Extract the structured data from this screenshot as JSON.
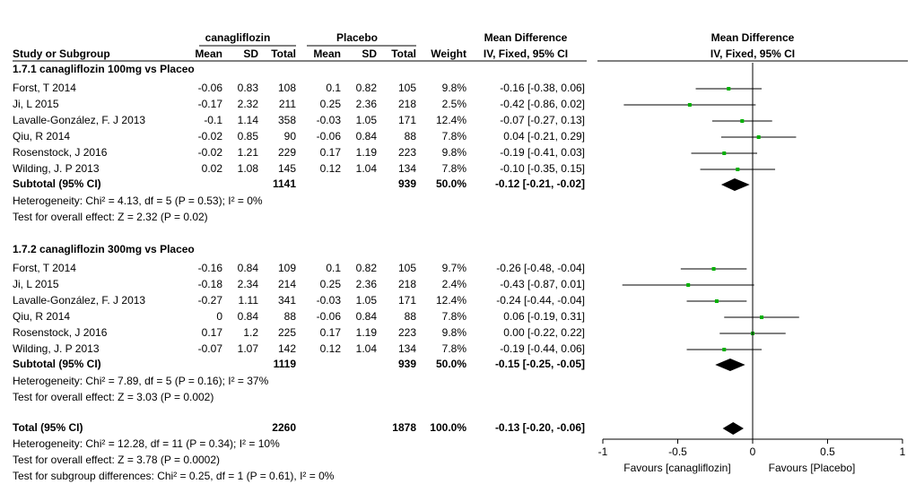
{
  "chart_data": {
    "type": "forest",
    "header": {
      "group1": "canagliflozin",
      "group2": "Placebo",
      "md_title": "Mean Difference",
      "md_method": "IV, Fixed, 95% CI",
      "plot_title": "Mean Difference",
      "plot_method": "IV, Fixed, 95% CI",
      "study": "Study or Subgroup",
      "mean1": "Mean",
      "sd1": "SD",
      "total1": "Total",
      "mean2": "Mean",
      "sd2": "SD",
      "total2": "Total",
      "weight": "Weight"
    },
    "subgroups": [
      {
        "title": "1.7.1 canagliflozin 100mg vs Placeo",
        "studies": [
          {
            "study": "Forst, T 2014",
            "mean1": "-0.06",
            "sd1": "0.83",
            "total1": "108",
            "mean2": "0.1",
            "sd2": "0.82",
            "total2": "105",
            "weight": "9.8%",
            "ci_label": "-0.16 [-0.38, 0.06]",
            "md": -0.16,
            "ci_low": -0.38,
            "ci_high": 0.06
          },
          {
            "study": "Ji, L 2015",
            "mean1": "-0.17",
            "sd1": "2.32",
            "total1": "211",
            "mean2": "0.25",
            "sd2": "2.36",
            "total2": "218",
            "weight": "2.5%",
            "ci_label": "-0.42 [-0.86, 0.02]",
            "md": -0.42,
            "ci_low": -0.86,
            "ci_high": 0.02
          },
          {
            "study": "Lavalle-González, F. J 2013",
            "mean1": "-0.1",
            "sd1": "1.14",
            "total1": "358",
            "mean2": "-0.03",
            "sd2": "1.05",
            "total2": "171",
            "weight": "12.4%",
            "ci_label": "-0.07 [-0.27, 0.13]",
            "md": -0.07,
            "ci_low": -0.27,
            "ci_high": 0.13
          },
          {
            "study": "Qiu, R 2014",
            "mean1": "-0.02",
            "sd1": "0.85",
            "total1": "90",
            "mean2": "-0.06",
            "sd2": "0.84",
            "total2": "88",
            "weight": "7.8%",
            "ci_label": "0.04 [-0.21, 0.29]",
            "md": 0.04,
            "ci_low": -0.21,
            "ci_high": 0.29
          },
          {
            "study": "Rosenstock, J 2016",
            "mean1": "-0.02",
            "sd1": "1.21",
            "total1": "229",
            "mean2": "0.17",
            "sd2": "1.19",
            "total2": "223",
            "weight": "9.8%",
            "ci_label": "-0.19 [-0.41, 0.03]",
            "md": -0.19,
            "ci_low": -0.41,
            "ci_high": 0.03
          },
          {
            "study": "Wilding, J. P 2013",
            "mean1": "0.02",
            "sd1": "1.08",
            "total1": "145",
            "mean2": "0.12",
            "sd2": "1.04",
            "total2": "134",
            "weight": "7.8%",
            "ci_label": "-0.10 [-0.35, 0.15]",
            "md": -0.1,
            "ci_low": -0.35,
            "ci_high": 0.15
          }
        ],
        "subtotal": {
          "study": "Subtotal (95% CI)",
          "total1": "1141",
          "total2": "939",
          "weight": "50.0%",
          "ci_label": "-0.12 [-0.21, -0.02]",
          "md": -0.12,
          "ci_low": -0.21,
          "ci_high": -0.02
        },
        "heterogeneity": "Heterogeneity: Chi² = 4.13, df = 5 (P = 0.53); I² = 0%",
        "overall_effect": "Test for overall effect: Z = 2.32 (P = 0.02)"
      },
      {
        "title": "1.7.2 canagliflozin 300mg vs Placeo",
        "studies": [
          {
            "study": "Forst, T 2014",
            "mean1": "-0.16",
            "sd1": "0.84",
            "total1": "109",
            "mean2": "0.1",
            "sd2": "0.82",
            "total2": "105",
            "weight": "9.7%",
            "ci_label": "-0.26 [-0.48, -0.04]",
            "md": -0.26,
            "ci_low": -0.48,
            "ci_high": -0.04
          },
          {
            "study": "Ji, L 2015",
            "mean1": "-0.18",
            "sd1": "2.34",
            "total1": "214",
            "mean2": "0.25",
            "sd2": "2.36",
            "total2": "218",
            "weight": "2.4%",
            "ci_label": "-0.43 [-0.87, 0.01]",
            "md": -0.43,
            "ci_low": -0.87,
            "ci_high": 0.01
          },
          {
            "study": "Lavalle-González, F. J 2013",
            "mean1": "-0.27",
            "sd1": "1.11",
            "total1": "341",
            "mean2": "-0.03",
            "sd2": "1.05",
            "total2": "171",
            "weight": "12.4%",
            "ci_label": "-0.24 [-0.44, -0.04]",
            "md": -0.24,
            "ci_low": -0.44,
            "ci_high": -0.04
          },
          {
            "study": "Qiu, R 2014",
            "mean1": "0",
            "sd1": "0.84",
            "total1": "88",
            "mean2": "-0.06",
            "sd2": "0.84",
            "total2": "88",
            "weight": "7.8%",
            "ci_label": "0.06 [-0.19, 0.31]",
            "md": 0.06,
            "ci_low": -0.19,
            "ci_high": 0.31
          },
          {
            "study": "Rosenstock, J 2016",
            "mean1": "0.17",
            "sd1": "1.2",
            "total1": "225",
            "mean2": "0.17",
            "sd2": "1.19",
            "total2": "223",
            "weight": "9.8%",
            "ci_label": "0.00 [-0.22, 0.22]",
            "md": 0,
            "ci_low": -0.22,
            "ci_high": 0.22
          },
          {
            "study": "Wilding, J. P 2013",
            "mean1": "-0.07",
            "sd1": "1.07",
            "total1": "142",
            "mean2": "0.12",
            "sd2": "1.04",
            "total2": "134",
            "weight": "7.8%",
            "ci_label": "-0.19 [-0.44, 0.06]",
            "md": -0.19,
            "ci_low": -0.44,
            "ci_high": 0.06
          }
        ],
        "subtotal": {
          "study": "Subtotal (95% CI)",
          "total1": "1119",
          "total2": "939",
          "weight": "50.0%",
          "ci_label": "-0.15 [-0.25, -0.05]",
          "md": -0.15,
          "ci_low": -0.25,
          "ci_high": -0.05
        },
        "heterogeneity": "Heterogeneity: Chi² = 7.89, df = 5 (P = 0.16); I² = 37%",
        "overall_effect": "Test for overall effect: Z = 3.03 (P = 0.002)"
      }
    ],
    "total": {
      "study": "Total (95% CI)",
      "total1": "2260",
      "total2": "1878",
      "weight": "100.0%",
      "ci_label": "-0.13 [-0.20, -0.06]",
      "md": -0.13,
      "ci_low": -0.2,
      "ci_high": -0.06
    },
    "total_heterogeneity": "Heterogeneity: Chi² = 12.28, df = 11 (P = 0.34); I² = 10%",
    "total_overall_effect": "Test for overall effect: Z = 3.78 (P = 0.0002)",
    "subgroup_differences": "Test for subgroup differences: Chi² = 0.25, df = 1 (P = 0.61), I² = 0%",
    "xlim": [
      -1,
      1
    ],
    "xticks": [
      -1,
      -0.5,
      0,
      0.5,
      1
    ],
    "favours_left": "Favours [canagliflozin]",
    "favours_right": "Favours [Placebo]",
    "marker_color": "#00b000"
  }
}
